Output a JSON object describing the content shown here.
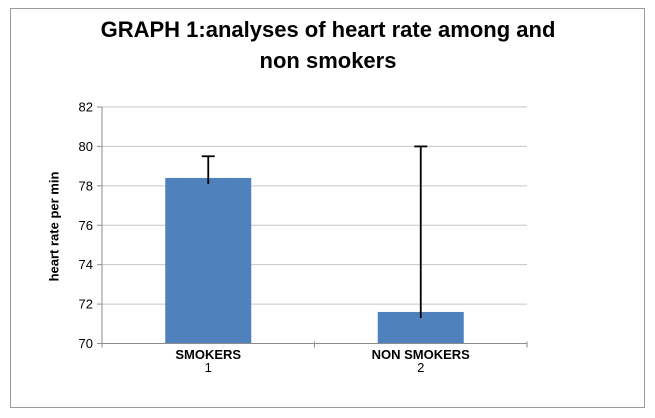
{
  "title": {
    "line1": "GRAPH 1:analyses of heart rate among and",
    "line2": "non smokers"
  },
  "y_axis": {
    "label": "heart rate per min"
  },
  "chart_data": {
    "type": "bar",
    "title": "GRAPH 1:analyses of heart rate among and non smokers",
    "categories": [
      "SMOKERS",
      "NON SMOKERS"
    ],
    "category_numbers": [
      "1",
      "2"
    ],
    "values": [
      78.4,
      71.6
    ],
    "errors_plus": [
      1.1,
      8.4
    ],
    "error_bar_tops": [
      79.5,
      80.0
    ],
    "xlabel": "",
    "ylabel": "heart rate per min",
    "ylim": [
      70,
      82
    ],
    "yticks": [
      70,
      72,
      74,
      76,
      78,
      80,
      82
    ],
    "grid": true,
    "legend": "none",
    "bar_color": "#4F81BD",
    "gridline_color": "#C6C6C6",
    "axis_color": "#8C8C8C",
    "error_color": "#000000",
    "text_color": "#000000"
  }
}
